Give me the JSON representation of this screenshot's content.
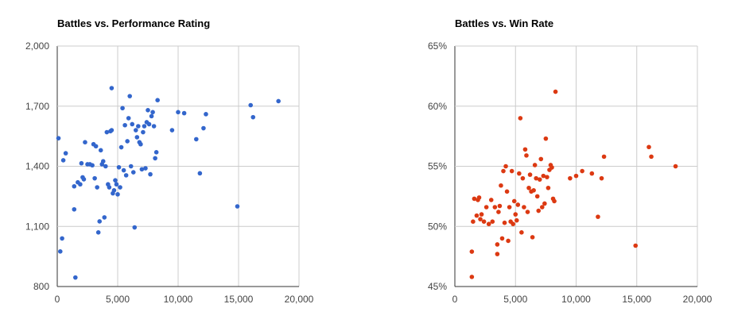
{
  "chart_data": [
    {
      "type": "scatter",
      "title": "Battles vs. Performance Rating",
      "xlim": [
        0,
        20000
      ],
      "ylim": [
        800,
        2000
      ],
      "x_ticks": [
        "0",
        "5,000",
        "10,000",
        "15,000",
        "20,000"
      ],
      "y_ticks": [
        "800",
        "1,100",
        "1,400",
        "1,700",
        "2,000"
      ],
      "x_tick_values": [
        0,
        5000,
        10000,
        15000,
        20000
      ],
      "y_tick_values": [
        800,
        1100,
        1400,
        1700,
        2000
      ],
      "grid": true,
      "color": "#3366cc",
      "points": [
        [
          100,
          1540
        ],
        [
          250,
          975
        ],
        [
          400,
          1040
        ],
        [
          500,
          1430
        ],
        [
          700,
          1465
        ],
        [
          1400,
          1185
        ],
        [
          1400,
          1300
        ],
        [
          1500,
          845
        ],
        [
          1700,
          1320
        ],
        [
          1900,
          1310
        ],
        [
          2000,
          1415
        ],
        [
          2100,
          1345
        ],
        [
          2200,
          1335
        ],
        [
          2300,
          1520
        ],
        [
          2500,
          1410
        ],
        [
          2700,
          1410
        ],
        [
          2900,
          1405
        ],
        [
          3000,
          1510
        ],
        [
          3100,
          1340
        ],
        [
          3200,
          1500
        ],
        [
          3300,
          1295
        ],
        [
          3400,
          1070
        ],
        [
          3500,
          1125
        ],
        [
          3600,
          1480
        ],
        [
          3700,
          1410
        ],
        [
          3800,
          1425
        ],
        [
          3900,
          1145
        ],
        [
          4000,
          1400
        ],
        [
          4100,
          1570
        ],
        [
          4200,
          1310
        ],
        [
          4300,
          1295
        ],
        [
          4400,
          1575
        ],
        [
          4500,
          1580
        ],
        [
          4600,
          1265
        ],
        [
          4700,
          1280
        ],
        [
          4800,
          1330
        ],
        [
          4900,
          1310
        ],
        [
          5000,
          1260
        ],
        [
          5100,
          1395
        ],
        [
          5200,
          1295
        ],
        [
          5300,
          1495
        ],
        [
          5400,
          1690
        ],
        [
          5500,
          1380
        ],
        [
          5600,
          1605
        ],
        [
          5700,
          1355
        ],
        [
          5800,
          1525
        ],
        [
          5900,
          1640
        ],
        [
          6000,
          1750
        ],
        [
          6100,
          1400
        ],
        [
          6200,
          1610
        ],
        [
          6300,
          1370
        ],
        [
          6400,
          1095
        ],
        [
          6500,
          1580
        ],
        [
          6600,
          1545
        ],
        [
          6700,
          1600
        ],
        [
          6800,
          1520
        ],
        [
          6900,
          1510
        ],
        [
          7000,
          1385
        ],
        [
          7100,
          1570
        ],
        [
          7200,
          1600
        ],
        [
          7300,
          1390
        ],
        [
          7400,
          1620
        ],
        [
          7500,
          1680
        ],
        [
          7600,
          1610
        ],
        [
          7700,
          1360
        ],
        [
          7800,
          1650
        ],
        [
          7900,
          1670
        ],
        [
          8000,
          1600
        ],
        [
          8100,
          1440
        ],
        [
          8200,
          1470
        ],
        [
          8300,
          1730
        ],
        [
          9500,
          1580
        ],
        [
          10000,
          1670
        ],
        [
          10500,
          1665
        ],
        [
          11500,
          1535
        ],
        [
          11800,
          1365
        ],
        [
          12100,
          1590
        ],
        [
          12300,
          1660
        ],
        [
          14900,
          1200
        ],
        [
          16000,
          1705
        ],
        [
          16200,
          1645
        ],
        [
          18300,
          1725
        ],
        [
          4500,
          1790
        ]
      ]
    },
    {
      "type": "scatter",
      "title": "Battles vs. Win Rate",
      "xlim": [
        0,
        20000
      ],
      "ylim": [
        45,
        65
      ],
      "x_ticks": [
        "0",
        "5,000",
        "10,000",
        "15,000",
        "20,000"
      ],
      "y_ticks": [
        "45%",
        "50%",
        "55%",
        "60%",
        "65%"
      ],
      "x_tick_values": [
        0,
        5000,
        10000,
        15000,
        20000
      ],
      "y_tick_values": [
        45,
        50,
        55,
        60,
        65
      ],
      "grid": true,
      "color": "#dc3912",
      "points": [
        [
          1400,
          45.8
        ],
        [
          1400,
          47.9
        ],
        [
          1500,
          50.4
        ],
        [
          1600,
          52.3
        ],
        [
          1800,
          50.9
        ],
        [
          1900,
          52.2
        ],
        [
          2000,
          52.4
        ],
        [
          2100,
          50.6
        ],
        [
          2200,
          51.0
        ],
        [
          2400,
          50.4
        ],
        [
          2600,
          51.6
        ],
        [
          2800,
          50.2
        ],
        [
          3000,
          52.2
        ],
        [
          3100,
          50.4
        ],
        [
          3300,
          51.6
        ],
        [
          3500,
          48.5
        ],
        [
          3500,
          47.7
        ],
        [
          3600,
          51.2
        ],
        [
          3700,
          51.7
        ],
        [
          3800,
          53.4
        ],
        [
          3900,
          49.0
        ],
        [
          4000,
          54.6
        ],
        [
          4100,
          50.3
        ],
        [
          4200,
          55.0
        ],
        [
          4300,
          52.9
        ],
        [
          4400,
          48.8
        ],
        [
          4500,
          51.6
        ],
        [
          4600,
          50.4
        ],
        [
          4700,
          54.6
        ],
        [
          4800,
          50.2
        ],
        [
          4900,
          52.1
        ],
        [
          5000,
          51.0
        ],
        [
          5100,
          50.5
        ],
        [
          5200,
          51.8
        ],
        [
          5300,
          54.4
        ],
        [
          5400,
          59.0
        ],
        [
          5500,
          49.5
        ],
        [
          5600,
          54.0
        ],
        [
          5700,
          51.6
        ],
        [
          5800,
          56.4
        ],
        [
          5900,
          55.9
        ],
        [
          6000,
          51.2
        ],
        [
          6100,
          53.2
        ],
        [
          6200,
          54.3
        ],
        [
          6300,
          52.9
        ],
        [
          6400,
          49.1
        ],
        [
          6500,
          53.0
        ],
        [
          6600,
          55.1
        ],
        [
          6700,
          54.0
        ],
        [
          6800,
          52.5
        ],
        [
          6900,
          51.3
        ],
        [
          7000,
          53.9
        ],
        [
          7100,
          55.6
        ],
        [
          7200,
          51.6
        ],
        [
          7300,
          54.2
        ],
        [
          7400,
          51.9
        ],
        [
          7500,
          57.3
        ],
        [
          7600,
          54.1
        ],
        [
          7700,
          53.2
        ],
        [
          7800,
          54.7
        ],
        [
          7900,
          55.1
        ],
        [
          8000,
          54.9
        ],
        [
          8100,
          52.3
        ],
        [
          8200,
          52.1
        ],
        [
          8300,
          61.2
        ],
        [
          9500,
          54.0
        ],
        [
          10000,
          54.2
        ],
        [
          10500,
          54.6
        ],
        [
          11300,
          54.4
        ],
        [
          11800,
          50.8
        ],
        [
          12100,
          54.0
        ],
        [
          12300,
          55.8
        ],
        [
          14900,
          48.4
        ],
        [
          16000,
          56.6
        ],
        [
          16200,
          55.8
        ],
        [
          18200,
          55.0
        ]
      ]
    }
  ]
}
